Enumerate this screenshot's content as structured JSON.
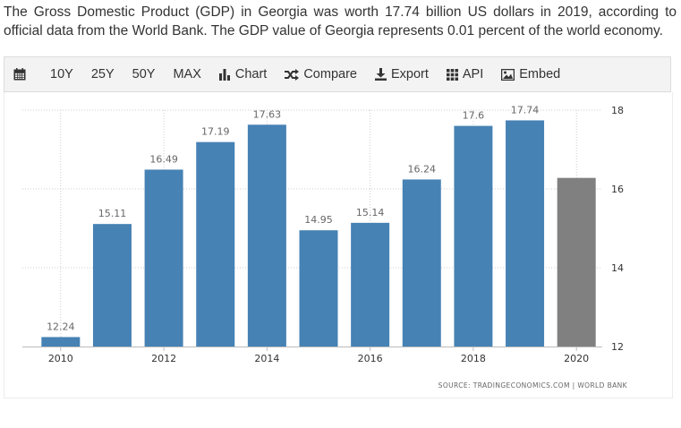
{
  "intro_text": "The Gross Domestic Product (GDP) in Georgia was worth 17.74 billion US dollars in 2019, according to official data from the World Bank. The GDP value of Georgia represents 0.01 percent of the world economy.",
  "toolbar": {
    "calendar_icon": "calendar-icon",
    "ranges": [
      "10Y",
      "25Y",
      "50Y",
      "MAX"
    ],
    "chart_label": "Chart",
    "compare_label": "Compare",
    "export_label": "Export",
    "api_label": "API",
    "embed_label": "Embed"
  },
  "source": "SOURCE: TRADINGECONOMICS.COM | WORLD BANK",
  "chart_data": {
    "type": "bar",
    "categories": [
      2010,
      2011,
      2012,
      2013,
      2014,
      2015,
      2016,
      2017,
      2018,
      2019,
      2020
    ],
    "values": [
      12.24,
      15.11,
      16.49,
      17.19,
      17.63,
      14.95,
      15.14,
      16.24,
      17.6,
      17.74,
      16.28
    ],
    "data_labels": [
      "12.24",
      "15.11",
      "16.49",
      "17.19",
      "17.63",
      "14.95",
      "15.14",
      "16.24",
      "17.6",
      "17.74",
      ""
    ],
    "x_tick_labels": [
      "2010",
      "2012",
      "2014",
      "2016",
      "2018",
      "2020"
    ],
    "y_tick_labels": [
      "12",
      "14",
      "16",
      "18"
    ],
    "ylim": [
      12,
      18
    ],
    "y_axis_side": "right",
    "grid": "horizontal dotted, vertical dotted at labelled years",
    "colors": {
      "bar": "#4682b4",
      "forecast_bar": "#808080",
      "grid": "#cccccc"
    },
    "highlight_last_bar": true
  }
}
